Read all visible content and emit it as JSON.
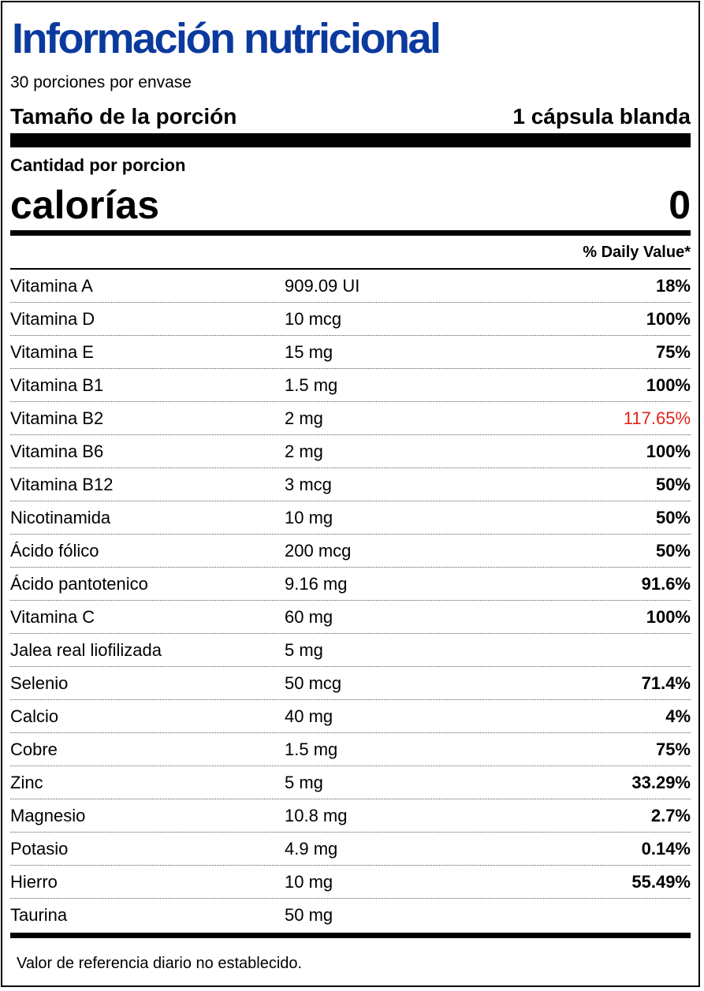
{
  "colors": {
    "title": "#0b3a9e",
    "warning": "#e0251b"
  },
  "header": {
    "title": "Información nutricional",
    "servings_per_container": "30 porciones por envase",
    "serving_size_label": "Tamaño de la porción",
    "serving_size_value": "1 cápsula blanda"
  },
  "amount": {
    "per_serving_label": "Cantidad por porcion",
    "calories_label": "calorías",
    "calories_value": "0",
    "daily_value_header": "% Daily Value*"
  },
  "nutrients": [
    {
      "name": "Vitamina A",
      "amount": "909.09 UI",
      "dv": "18%"
    },
    {
      "name": "Vitamina D",
      "amount": "10 mcg",
      "dv": "100%"
    },
    {
      "name": "Vitamina E",
      "amount": "15 mg",
      "dv": "75%"
    },
    {
      "name": "Vitamina B1",
      "amount": "1.5 mg",
      "dv": "100%"
    },
    {
      "name": "Vitamina B2",
      "amount": "2 mg",
      "dv": "117.65%",
      "highlight": true
    },
    {
      "name": "Vitamina B6",
      "amount": "2 mg",
      "dv": "100%"
    },
    {
      "name": "Vitamina B12",
      "amount": "3 mcg",
      "dv": "50%"
    },
    {
      "name": "Nicotinamida",
      "amount": "10 mg",
      "dv": "50%"
    },
    {
      "name": "Ácido fólico",
      "amount": "200 mcg",
      "dv": "50%"
    },
    {
      "name": "Ácido pantotenico",
      "amount": "9.16 mg",
      "dv": "91.6%"
    },
    {
      "name": "Vitamina C",
      "amount": "60 mg",
      "dv": "100%"
    },
    {
      "name": "Jalea real liofilizada",
      "amount": "5 mg",
      "dv": ""
    },
    {
      "name": "Selenio",
      "amount": "50 mcg",
      "dv": "71.4%"
    },
    {
      "name": "Calcio",
      "amount": "40 mg",
      "dv": "4%"
    },
    {
      "name": "Cobre",
      "amount": "1.5 mg",
      "dv": "75%"
    },
    {
      "name": "Zinc",
      "amount": "5 mg",
      "dv": "33.29%"
    },
    {
      "name": "Magnesio",
      "amount": "10.8 mg",
      "dv": "2.7%"
    },
    {
      "name": "Potasio",
      "amount": "4.9 mg",
      "dv": "0.14%"
    },
    {
      "name": "Hierro",
      "amount": "10 mg",
      "dv": "55.49%"
    },
    {
      "name": "Taurina",
      "amount": "50 mg",
      "dv": ""
    }
  ],
  "footnote": "Valor de referencia diario no establecido."
}
